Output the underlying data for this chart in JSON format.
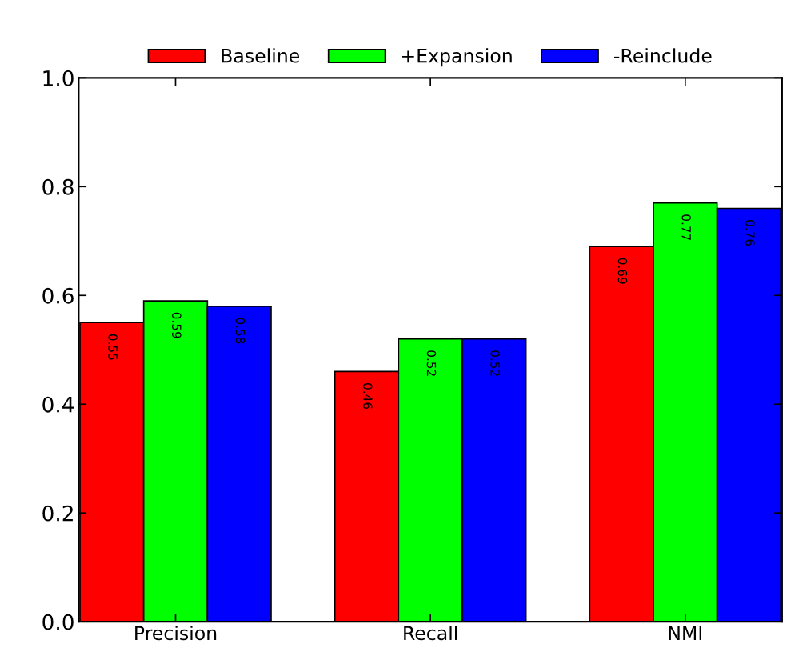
{
  "chart_data": {
    "type": "bar",
    "categories": [
      "Precision",
      "Recall",
      "NMI"
    ],
    "series": [
      {
        "name": "Baseline",
        "color": "#ff0000",
        "values": [
          0.55,
          0.46,
          0.69
        ]
      },
      {
        "name": "+Expansion",
        "color": "#00ff00",
        "values": [
          0.59,
          0.52,
          0.77
        ]
      },
      {
        "name": "-Reinclude",
        "color": "#0000ff",
        "values": [
          0.58,
          0.52,
          0.76
        ]
      }
    ],
    "ylim": [
      0.0,
      1.0
    ],
    "yticks": [
      {
        "value": 0.0,
        "label": "0.0"
      },
      {
        "value": 0.2,
        "label": "0.2"
      },
      {
        "value": 0.4,
        "label": "0.4"
      },
      {
        "value": 0.6,
        "label": "0.6"
      },
      {
        "value": 0.8,
        "label": "0.8"
      },
      {
        "value": 1.0,
        "label": "1.0"
      }
    ],
    "data_labels": true,
    "legend": "top",
    "grid": false
  }
}
